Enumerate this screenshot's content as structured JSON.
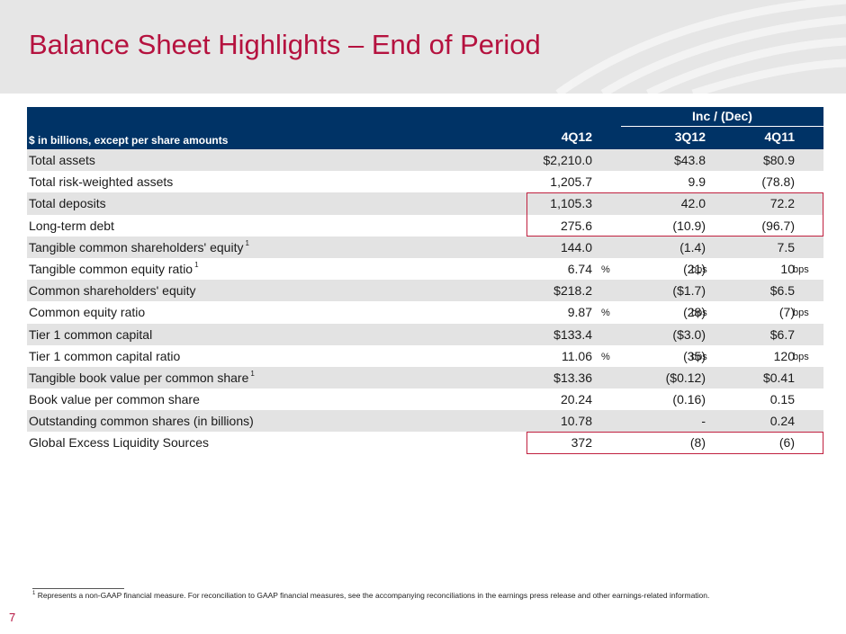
{
  "title": "Balance Sheet Highlights – End of Period",
  "table": {
    "subheader": "$ in billions, except per share amounts",
    "group_header": "Inc / (Dec)",
    "columns": [
      "4Q12",
      "3Q12",
      "4Q11"
    ],
    "rows": [
      {
        "label": "Total assets",
        "sup": "",
        "v1": "$2,210.0",
        "v2": "$43.8",
        "v3": "$80.9",
        "u1": "",
        "u2": "",
        "u3": ""
      },
      {
        "label": "Total risk-weighted assets",
        "sup": "",
        "v1": "1,205.7",
        "v2": "9.9",
        "v3": "(78.8)",
        "u1": "",
        "u2": "",
        "u3": ""
      },
      {
        "label": "Total deposits",
        "sup": "",
        "v1": "1,105.3",
        "v2": "42.0",
        "v3": "72.2",
        "u1": "",
        "u2": "",
        "u3": ""
      },
      {
        "label": "Long-term debt",
        "sup": "",
        "v1": "275.6",
        "v2": "(10.9)",
        "v3": "(96.7)",
        "u1": "",
        "u2": "",
        "u3": ""
      },
      {
        "label": "Tangible common shareholders' equity",
        "sup": "1",
        "v1": "144.0",
        "v2": "(1.4)",
        "v3": "7.5",
        "u1": "",
        "u2": "",
        "u3": ""
      },
      {
        "label": "Tangible common equity ratio",
        "sup": "1",
        "v1": "6.74",
        "v2": "(21)",
        "v3": "10",
        "u1": "%",
        "u2": "bps",
        "u3": "bps"
      },
      {
        "label": "Common shareholders' equity",
        "sup": "",
        "v1": "$218.2",
        "v2": "($1.7)",
        "v3": "$6.5",
        "u1": "",
        "u2": "",
        "u3": ""
      },
      {
        "label": "Common equity ratio",
        "sup": "",
        "v1": "9.87",
        "v2": "(28)",
        "v3": "(7)",
        "u1": "%",
        "u2": "bps",
        "u3": "bps"
      },
      {
        "label": "Tier 1 common capital",
        "sup": "",
        "v1": "$133.4",
        "v2": "($3.0)",
        "v3": "$6.7",
        "u1": "",
        "u2": "",
        "u3": ""
      },
      {
        "label": "Tier 1 common capital ratio",
        "sup": "",
        "v1": "11.06",
        "v2": "(35)",
        "v3": "120",
        "u1": "%",
        "u2": "bps",
        "u3": "bps"
      },
      {
        "label": "Tangible book value per common share",
        "sup": "1",
        "v1": "$13.36",
        "v2": "($0.12)",
        "v3": "$0.41",
        "u1": "",
        "u2": "",
        "u3": ""
      },
      {
        "label": "Book value per common share",
        "sup": "",
        "v1": "20.24",
        "v2": "(0.16)",
        "v3": "0.15",
        "u1": "",
        "u2": "",
        "u3": ""
      },
      {
        "label": "Outstanding common shares (in billions)",
        "sup": "",
        "v1": "10.78",
        "v2": "-",
        "v3": "0.24",
        "u1": "",
        "u2": "",
        "u3": ""
      },
      {
        "label": "Global Excess Liquidity Sources",
        "sup": "",
        "v1": "372",
        "v2": "(8)",
        "v3": "(6)",
        "u1": "",
        "u2": "",
        "u3": ""
      }
    ]
  },
  "footnote": {
    "marker": "1",
    "text": " Represents a non-GAAP financial measure. For reconciliation to GAAP financial measures, see the accompanying reconciliations in the earnings press release and other earnings-related information."
  },
  "page_number": "7",
  "colors": {
    "title": "#b5123f",
    "header": "#003366",
    "highlight": "#c0203f",
    "band": "#e6e6e6"
  }
}
